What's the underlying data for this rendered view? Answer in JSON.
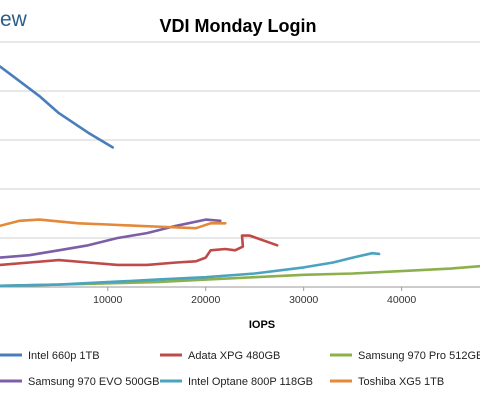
{
  "logo": {
    "text": "ew"
  },
  "chart_data": {
    "type": "line",
    "title": "VDI Monday Login",
    "xlabel": "IOPS",
    "ylabel": "",
    "x_ticks": [
      10000,
      20000,
      30000,
      40000
    ],
    "x_tick_labels": [
      "10000",
      "20000",
      "30000",
      "40000"
    ],
    "xlim": [
      -1000,
      48000
    ],
    "ylim": [
      0,
      100
    ],
    "grid": true,
    "legend_position": "bottom",
    "series": [
      {
        "name": "Intel 660p 1TB",
        "color": "#4a7ebb",
        "x": [
          -1000,
          0,
          3000,
          5000,
          8000,
          10500
        ],
        "y": [
          90,
          87,
          78,
          71,
          63,
          57
        ]
      },
      {
        "name": "Adata XPG 480GB",
        "color": "#be4b48",
        "x": [
          -1000,
          2000,
          5000,
          8000,
          11000,
          14000,
          17000,
          19000,
          20000,
          20500,
          22000,
          23000,
          23800,
          23700,
          24500,
          27300
        ],
        "y": [
          9,
          10,
          11,
          10,
          9,
          9,
          10,
          10.5,
          12,
          15,
          15.5,
          15,
          16.5,
          21,
          21,
          17
        ]
      },
      {
        "name": "Samsung 970 Pro 512GB",
        "color": "#8cb04c",
        "x": [
          -1000,
          5000,
          10000,
          15000,
          20000,
          25000,
          30000,
          35000,
          40000,
          45000,
          48000
        ],
        "y": [
          0.5,
          1,
          1.5,
          2,
          3,
          4,
          5,
          5.5,
          6.5,
          7.5,
          8.5
        ]
      },
      {
        "name": "Samsung 970 EVO 500GB",
        "color": "#7c5fa6",
        "x": [
          -1000,
          2000,
          5000,
          8000,
          11000,
          14000,
          17000,
          20000,
          21500
        ],
        "y": [
          12,
          13,
          15,
          17,
          20,
          22,
          25,
          27.5,
          27
        ]
      },
      {
        "name": "Intel Optane 800P 118GB",
        "color": "#4aa3bf",
        "x": [
          -1000,
          5000,
          10000,
          15000,
          20000,
          25000,
          30000,
          33000,
          35000,
          37000,
          37700
        ],
        "y": [
          0.5,
          1,
          2,
          3,
          4,
          5.5,
          8,
          10,
          12,
          13.8,
          13.5
        ]
      },
      {
        "name": "Toshiba XG5 1TB",
        "color": "#e4883a",
        "x": [
          -1000,
          1000,
          3000,
          7000,
          10000,
          13000,
          16000,
          19000,
          20500,
          22000
        ],
        "y": [
          25,
          27,
          27.5,
          26,
          25.5,
          25,
          24.5,
          24,
          26,
          26
        ]
      }
    ]
  }
}
